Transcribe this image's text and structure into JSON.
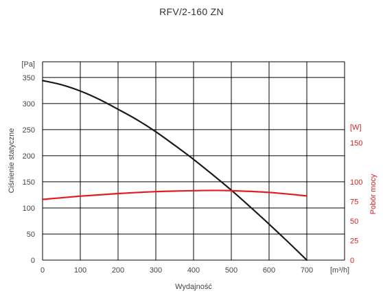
{
  "chart_data": {
    "type": "line",
    "title": "RFV/2-160 ZN",
    "xlabel": "Wydajność",
    "xunit": "[m³/h]",
    "ylabel": "Ciśnienie statyczne",
    "yunit": "[Pa]",
    "y2label": "Pobór mocy",
    "y2unit": "[W]",
    "xlim": [
      0,
      800
    ],
    "ylim": [
      0,
      380
    ],
    "y2lim": [
      0,
      253.3
    ],
    "xticks": [
      0,
      100,
      200,
      300,
      400,
      500,
      600,
      700
    ],
    "yticks": [
      0,
      50,
      100,
      150,
      200,
      250,
      300,
      350
    ],
    "y2ticks": [
      0,
      25,
      50,
      75,
      100,
      150
    ],
    "grid": true,
    "colors": {
      "pressure": "#1a1a1a",
      "power": "#e8191e",
      "grid": "#000000",
      "right_axis": "#d81e1e"
    },
    "series": [
      {
        "axis": "left",
        "x": [
          0,
          50,
          100,
          150,
          200,
          250,
          300,
          350,
          400,
          450,
          500,
          550,
          600,
          650,
          700
        ],
        "y": [
          344,
          336,
          324,
          308,
          289,
          269,
          246,
          220,
          193,
          164,
          134,
          102,
          69,
          35,
          0
        ]
      },
      {
        "axis": "right",
        "x": [
          0,
          100,
          200,
          300,
          400,
          450,
          500,
          600,
          700
        ],
        "y": [
          77.5,
          81.7,
          85,
          87.5,
          88.7,
          89,
          88.7,
          86.5,
          82
        ]
      }
    ]
  }
}
